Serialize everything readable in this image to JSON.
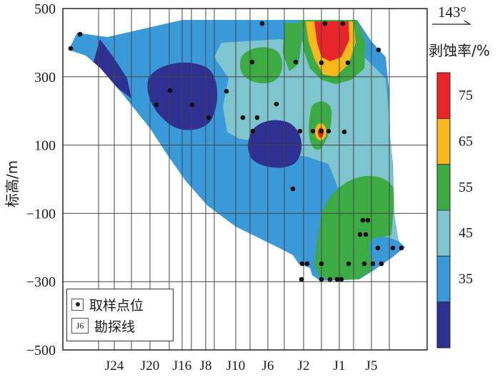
{
  "chart_data": {
    "type": "heatmap",
    "title": "",
    "ylabel": "标高/m",
    "xlabel": "",
    "ylim": [
      -500,
      500
    ],
    "y_ticks": [
      500,
      300,
      100,
      -100,
      -300,
      -500
    ],
    "x_ticks": [
      "J24",
      "J20",
      "J16",
      "J8",
      "J10",
      "J6",
      "J2",
      "J1",
      "J5"
    ],
    "grid": true,
    "orientation_label": "143°",
    "colorbar": {
      "label": "剥蚀率/%",
      "tick_labels": [
        "75",
        "65",
        "55",
        "45",
        "35"
      ],
      "colors": [
        "#2e3191",
        "#3a9ad9",
        "#7ec5cf",
        "#3dab43",
        "#f9b81c",
        "#e8252b"
      ]
    },
    "legend": {
      "sample_label": "取样点位",
      "line_label": "勘探线",
      "line_symbol": "J6"
    }
  }
}
